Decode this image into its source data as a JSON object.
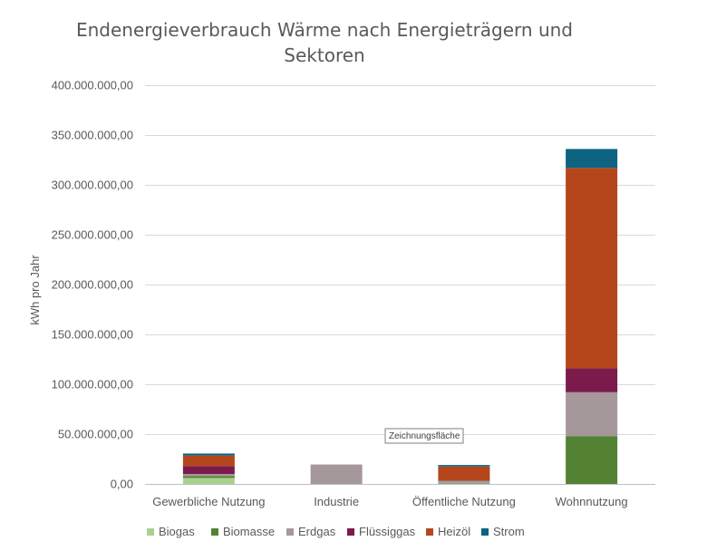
{
  "chart_data": {
    "type": "bar",
    "stacked": true,
    "title_lines": [
      "Endenergieverbrauch Wärme nach Energieträgern und",
      "Sektoren"
    ],
    "ylabel": "kWh pro Jahr",
    "xlabel": "",
    "ylim": [
      0,
      400000000
    ],
    "yticks": [
      0,
      50000000,
      100000000,
      150000000,
      200000000,
      250000000,
      300000000,
      350000000,
      400000000
    ],
    "ytick_labels": [
      "0,00",
      "50.000.000,00",
      "100.000.000,00",
      "150.000.000,00",
      "200.000.000,00",
      "250.000.000,00",
      "300.000.000,00",
      "350.000.000,00",
      "400.000.000,00"
    ],
    "categories": [
      "Gewerbliche Nutzung",
      "Industrie",
      "Öffentliche Nutzung",
      "Wohnnutzung"
    ],
    "grid": true,
    "legend_position": "bottom",
    "series": [
      {
        "name": "Biogas",
        "color": "#a9d18e",
        "values": [
          6000000,
          0,
          500000,
          0
        ]
      },
      {
        "name": "Biomasse",
        "color": "#548235",
        "values": [
          2000000,
          0,
          500000,
          48000000
        ]
      },
      {
        "name": "Erdgas",
        "color": "#a5989a",
        "values": [
          2000000,
          19500000,
          2000000,
          44000000
        ]
      },
      {
        "name": "Flüssiggas",
        "color": "#7b1b4c",
        "values": [
          8000000,
          0,
          500000,
          24000000
        ]
      },
      {
        "name": "Heizöl",
        "color": "#b5461b",
        "values": [
          10500000,
          0,
          14000000,
          201000000
        ]
      },
      {
        "name": "Strom",
        "color": "#0d6380",
        "values": [
          2000000,
          0,
          1500000,
          19000000
        ]
      }
    ],
    "annotations": [
      {
        "text": "Zeichnungsfläche"
      }
    ]
  }
}
